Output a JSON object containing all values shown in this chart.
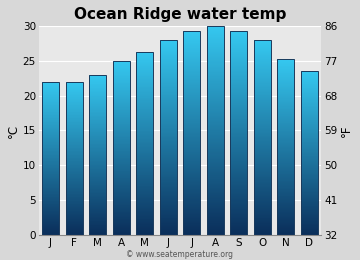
{
  "title": "Ocean Ridge water temp",
  "months": [
    "J",
    "F",
    "M",
    "A",
    "M",
    "J",
    "J",
    "A",
    "S",
    "O",
    "N",
    "D"
  ],
  "values_c": [
    22,
    22,
    23,
    25,
    26.3,
    28,
    29.2,
    30,
    29.2,
    28,
    25.2,
    23.5
  ],
  "ylim_c": [
    0,
    30
  ],
  "yticks_c": [
    0,
    5,
    10,
    15,
    20,
    25,
    30
  ],
  "yticks_f": [
    32,
    41,
    50,
    59,
    68,
    77,
    86
  ],
  "ylabel_left": "°C",
  "ylabel_right": "°F",
  "bar_color_top": "#35c8f0",
  "bar_color_bottom": "#0a2e5a",
  "bar_edge_color": "#1a4a7a",
  "bg_color": "#d8d8d8",
  "plot_bg_color": "#e8e8e8",
  "watermark": "© www.seatemperature.org",
  "title_fontsize": 11,
  "tick_fontsize": 7.5,
  "label_fontsize": 8.5
}
